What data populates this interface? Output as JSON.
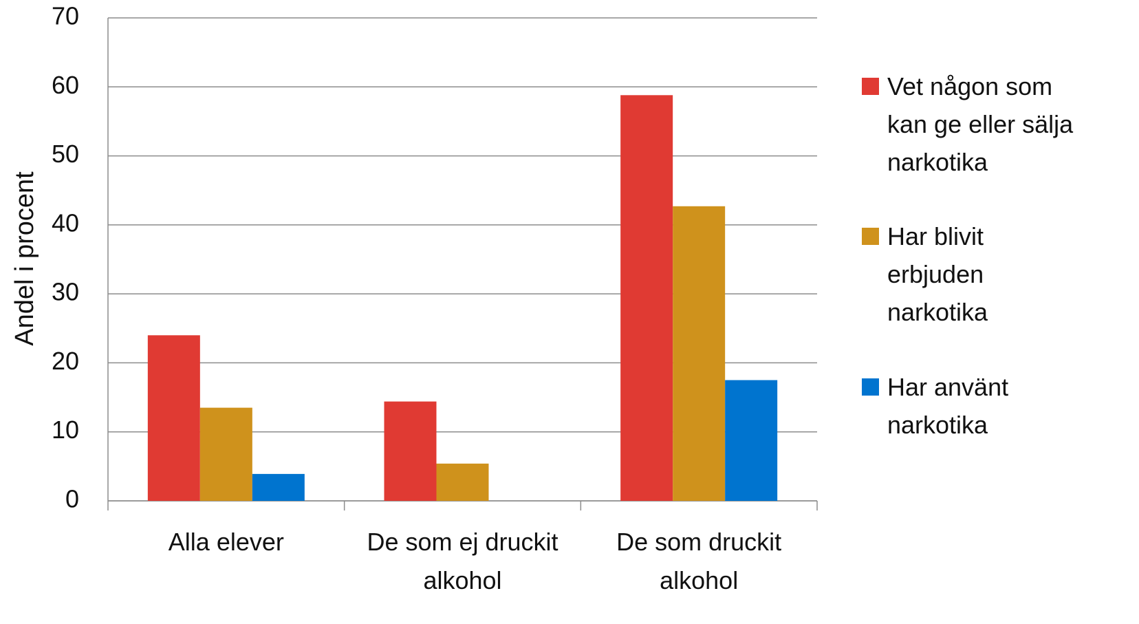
{
  "chart_data": {
    "type": "bar",
    "y_label": "Andel i procent",
    "categories": [
      "Alla elever",
      "De som ej druckit alkohol",
      "De som druckit alkohol"
    ],
    "series": [
      {
        "name": "Vet någon som kan ge eller sälja narkotika",
        "color": "#e03a33",
        "values": [
          24.0,
          14.4,
          58.8
        ]
      },
      {
        "name": "Har blivit erbjuden narkotika",
        "color": "#cf921c",
        "values": [
          13.5,
          5.4,
          42.7
        ]
      },
      {
        "name": "Har använt narkotika",
        "color": "#0074cf",
        "values": [
          3.9,
          0,
          17.5
        ]
      }
    ],
    "ylim": [
      0,
      70
    ],
    "yticks": [
      0,
      10,
      20,
      30,
      40,
      50,
      60,
      70
    ],
    "grid": true,
    "legend": "right"
  }
}
